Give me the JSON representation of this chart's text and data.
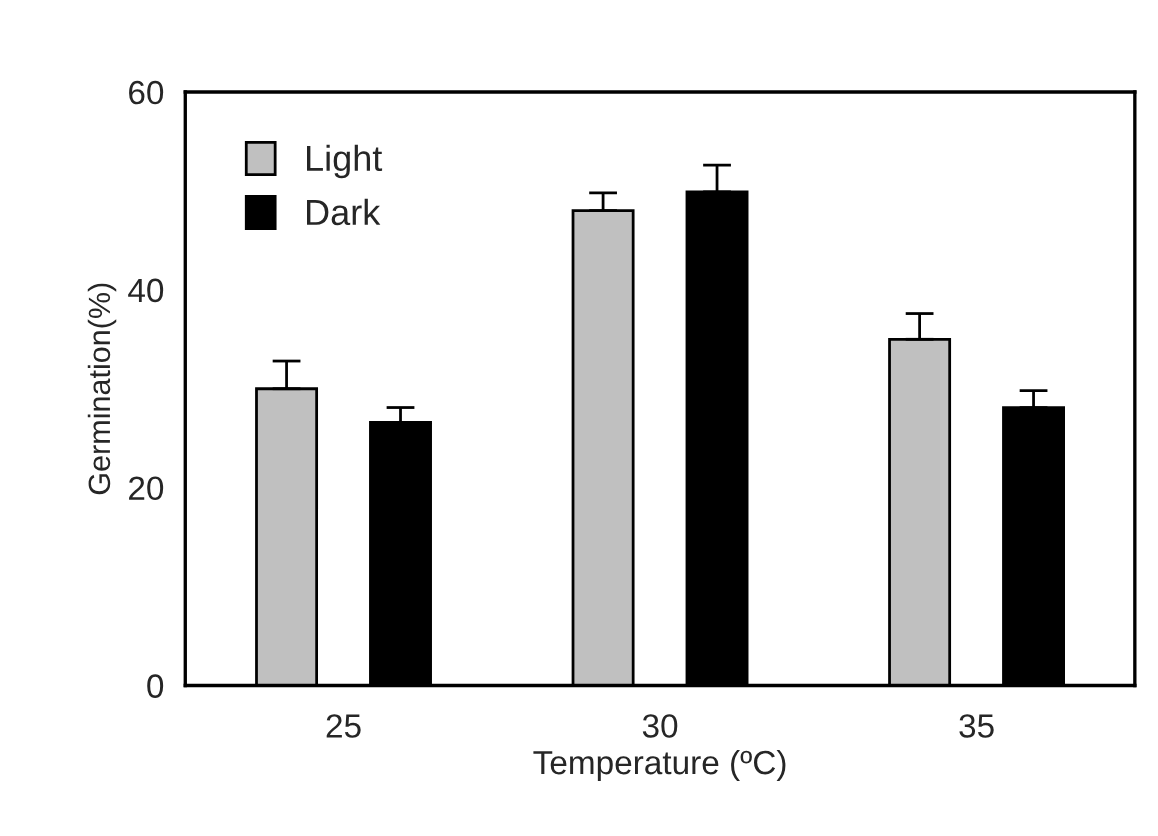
{
  "chart_data": {
    "type": "bar",
    "xlabel": "Temperature (ºC)",
    "ylabel": "Germination(%)",
    "categories": [
      "25",
      "30",
      "35"
    ],
    "series": [
      {
        "name": "Light",
        "color": "#c0c0c0",
        "values": [
          30,
          48,
          35
        ],
        "errors": [
          [
            30,
            32.8
          ],
          [
            48,
            49.8
          ],
          [
            35,
            37.6
          ]
        ]
      },
      {
        "name": "Dark",
        "color": "#000000",
        "values": [
          26.6,
          49.9,
          28.1
        ],
        "errors": [
          [
            26.6,
            28.1
          ],
          [
            49.9,
            52.6
          ],
          [
            28.1,
            29.8
          ]
        ]
      }
    ],
    "ylim": [
      0,
      60
    ],
    "yticks": [
      0,
      20,
      40,
      60
    ],
    "grid": false,
    "legend": "top left"
  }
}
